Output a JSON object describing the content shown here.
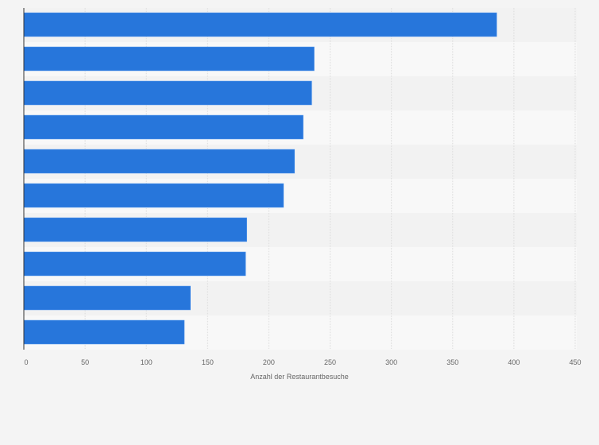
{
  "chart_data": {
    "type": "bar",
    "orientation": "horizontal",
    "title": "",
    "xlabel": "Anzahl der Restaurantbesuche",
    "ylabel": "",
    "categories": [
      "",
      "",
      "",
      "",
      "",
      "",
      "",
      "",
      "",
      ""
    ],
    "values": [
      386,
      237,
      235,
      228,
      221,
      212,
      182,
      181,
      136,
      131
    ],
    "xlim": [
      0,
      450
    ],
    "xticks": [
      0,
      50,
      100,
      150,
      200,
      250,
      300,
      350,
      400,
      450
    ],
    "grid": true,
    "bar_color": "#2776db"
  }
}
